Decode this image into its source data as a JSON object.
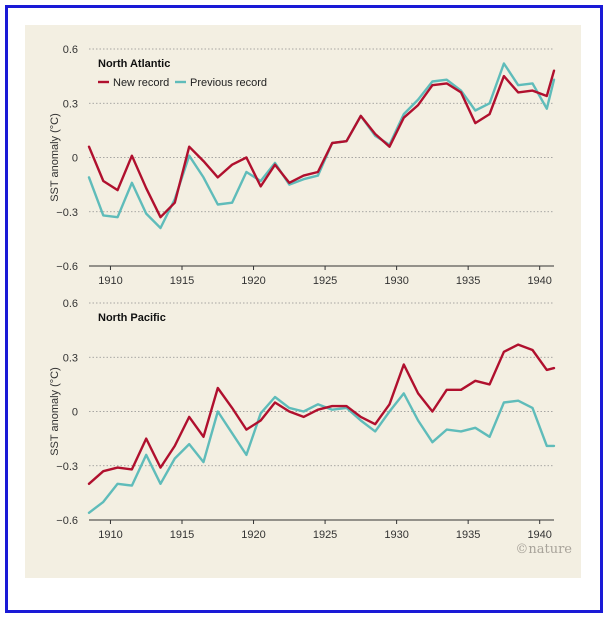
{
  "colors": {
    "new_record": "#b0102e",
    "previous_record": "#5fbcba",
    "frame": "#1a1ad6",
    "panel_bg": "#f3efe2"
  },
  "credit": "©nature",
  "chart_data": [
    {
      "type": "line",
      "title": "North Atlantic",
      "xlabel": "",
      "ylabel": "SST anomaly (°C)",
      "xlim": [
        1908.5,
        1941
      ],
      "ylim": [
        -0.6,
        0.6
      ],
      "yticks": [
        -0.6,
        -0.3,
        0,
        0.3,
        0.6
      ],
      "ytick_labels": [
        "−0.6",
        "−0.3",
        "0",
        "0.3",
        "0.6"
      ],
      "xticks": [
        1910,
        1915,
        1920,
        1925,
        1930,
        1935,
        1940
      ],
      "xtick_labels": [
        "1910",
        "1915",
        "1920",
        "1925",
        "1930",
        "1935",
        "1940"
      ],
      "grid": "horizontal dotted",
      "legend": "top-left",
      "x": [
        1908.5,
        1909.5,
        1910.5,
        1911.5,
        1912.5,
        1913.5,
        1914.5,
        1915.5,
        1916.5,
        1917.5,
        1918.5,
        1919.5,
        1920.5,
        1921.5,
        1922.5,
        1923.5,
        1924.5,
        1925.5,
        1926.5,
        1927.5,
        1928.5,
        1929.5,
        1930.5,
        1931.5,
        1932.5,
        1933.5,
        1934.5,
        1935.5,
        1936.5,
        1937.5,
        1938.5,
        1939.5,
        1940.5,
        1941
      ],
      "series": [
        {
          "name": "New record",
          "color_key": "new_record",
          "values": [
            0.06,
            -0.13,
            -0.18,
            0.01,
            -0.17,
            -0.33,
            -0.25,
            0.06,
            -0.02,
            -0.11,
            -0.04,
            0.0,
            -0.16,
            -0.04,
            -0.14,
            -0.1,
            -0.08,
            0.08,
            0.09,
            0.23,
            0.13,
            0.06,
            0.22,
            0.29,
            0.4,
            0.41,
            0.36,
            0.19,
            0.24,
            0.45,
            0.36,
            0.37,
            0.34,
            0.48
          ]
        },
        {
          "name": "Previous record",
          "color_key": "previous_record",
          "values": [
            -0.11,
            -0.32,
            -0.33,
            -0.14,
            -0.31,
            -0.39,
            -0.23,
            0.01,
            -0.11,
            -0.26,
            -0.25,
            -0.08,
            -0.13,
            -0.03,
            -0.15,
            -0.12,
            -0.1,
            0.08,
            0.09,
            0.23,
            0.12,
            0.07,
            0.24,
            0.32,
            0.42,
            0.43,
            0.37,
            0.26,
            0.3,
            0.52,
            0.4,
            0.41,
            0.27,
            0.43
          ]
        }
      ]
    },
    {
      "type": "line",
      "title": "North Pacific",
      "xlabel": "",
      "ylabel": "SST anomaly (°C)",
      "xlim": [
        1908.5,
        1941
      ],
      "ylim": [
        -0.6,
        0.6
      ],
      "yticks": [
        -0.6,
        -0.3,
        0,
        0.3,
        0.6
      ],
      "ytick_labels": [
        "−0.6",
        "−0.3",
        "0",
        "0.3",
        "0.6"
      ],
      "xticks": [
        1910,
        1915,
        1920,
        1925,
        1930,
        1935,
        1940
      ],
      "xtick_labels": [
        "1910",
        "1915",
        "1920",
        "1925",
        "1930",
        "1935",
        "1940"
      ],
      "grid": "horizontal dotted",
      "legend": "none",
      "x": [
        1908.5,
        1909.5,
        1910.5,
        1911.5,
        1912.5,
        1913.5,
        1914.5,
        1915.5,
        1916.5,
        1917.5,
        1918.5,
        1919.5,
        1920.5,
        1921.5,
        1922.5,
        1923.5,
        1924.5,
        1925.5,
        1926.5,
        1927.5,
        1928.5,
        1929.5,
        1930.5,
        1931.5,
        1932.5,
        1933.5,
        1934.5,
        1935.5,
        1936.5,
        1937.5,
        1938.5,
        1939.5,
        1940.5,
        1941
      ],
      "series": [
        {
          "name": "New record",
          "color_key": "new_record",
          "values": [
            -0.4,
            -0.33,
            -0.31,
            -0.32,
            -0.15,
            -0.31,
            -0.19,
            -0.03,
            -0.14,
            0.13,
            0.02,
            -0.1,
            -0.05,
            0.05,
            0.0,
            -0.03,
            0.01,
            0.03,
            0.03,
            -0.03,
            -0.07,
            0.04,
            0.26,
            0.1,
            0.0,
            0.12,
            0.12,
            0.17,
            0.15,
            0.33,
            0.37,
            0.34,
            0.23,
            0.24
          ]
        },
        {
          "name": "Previous record",
          "color_key": "previous_record",
          "values": [
            -0.56,
            -0.5,
            -0.4,
            -0.41,
            -0.24,
            -0.4,
            -0.26,
            -0.18,
            -0.28,
            0.0,
            -0.12,
            -0.24,
            -0.01,
            0.08,
            0.02,
            0.0,
            0.04,
            0.01,
            0.02,
            -0.05,
            -0.11,
            0.0,
            0.1,
            -0.05,
            -0.17,
            -0.1,
            -0.11,
            -0.09,
            -0.14,
            0.05,
            0.06,
            0.02,
            -0.19,
            -0.19
          ]
        }
      ]
    }
  ]
}
